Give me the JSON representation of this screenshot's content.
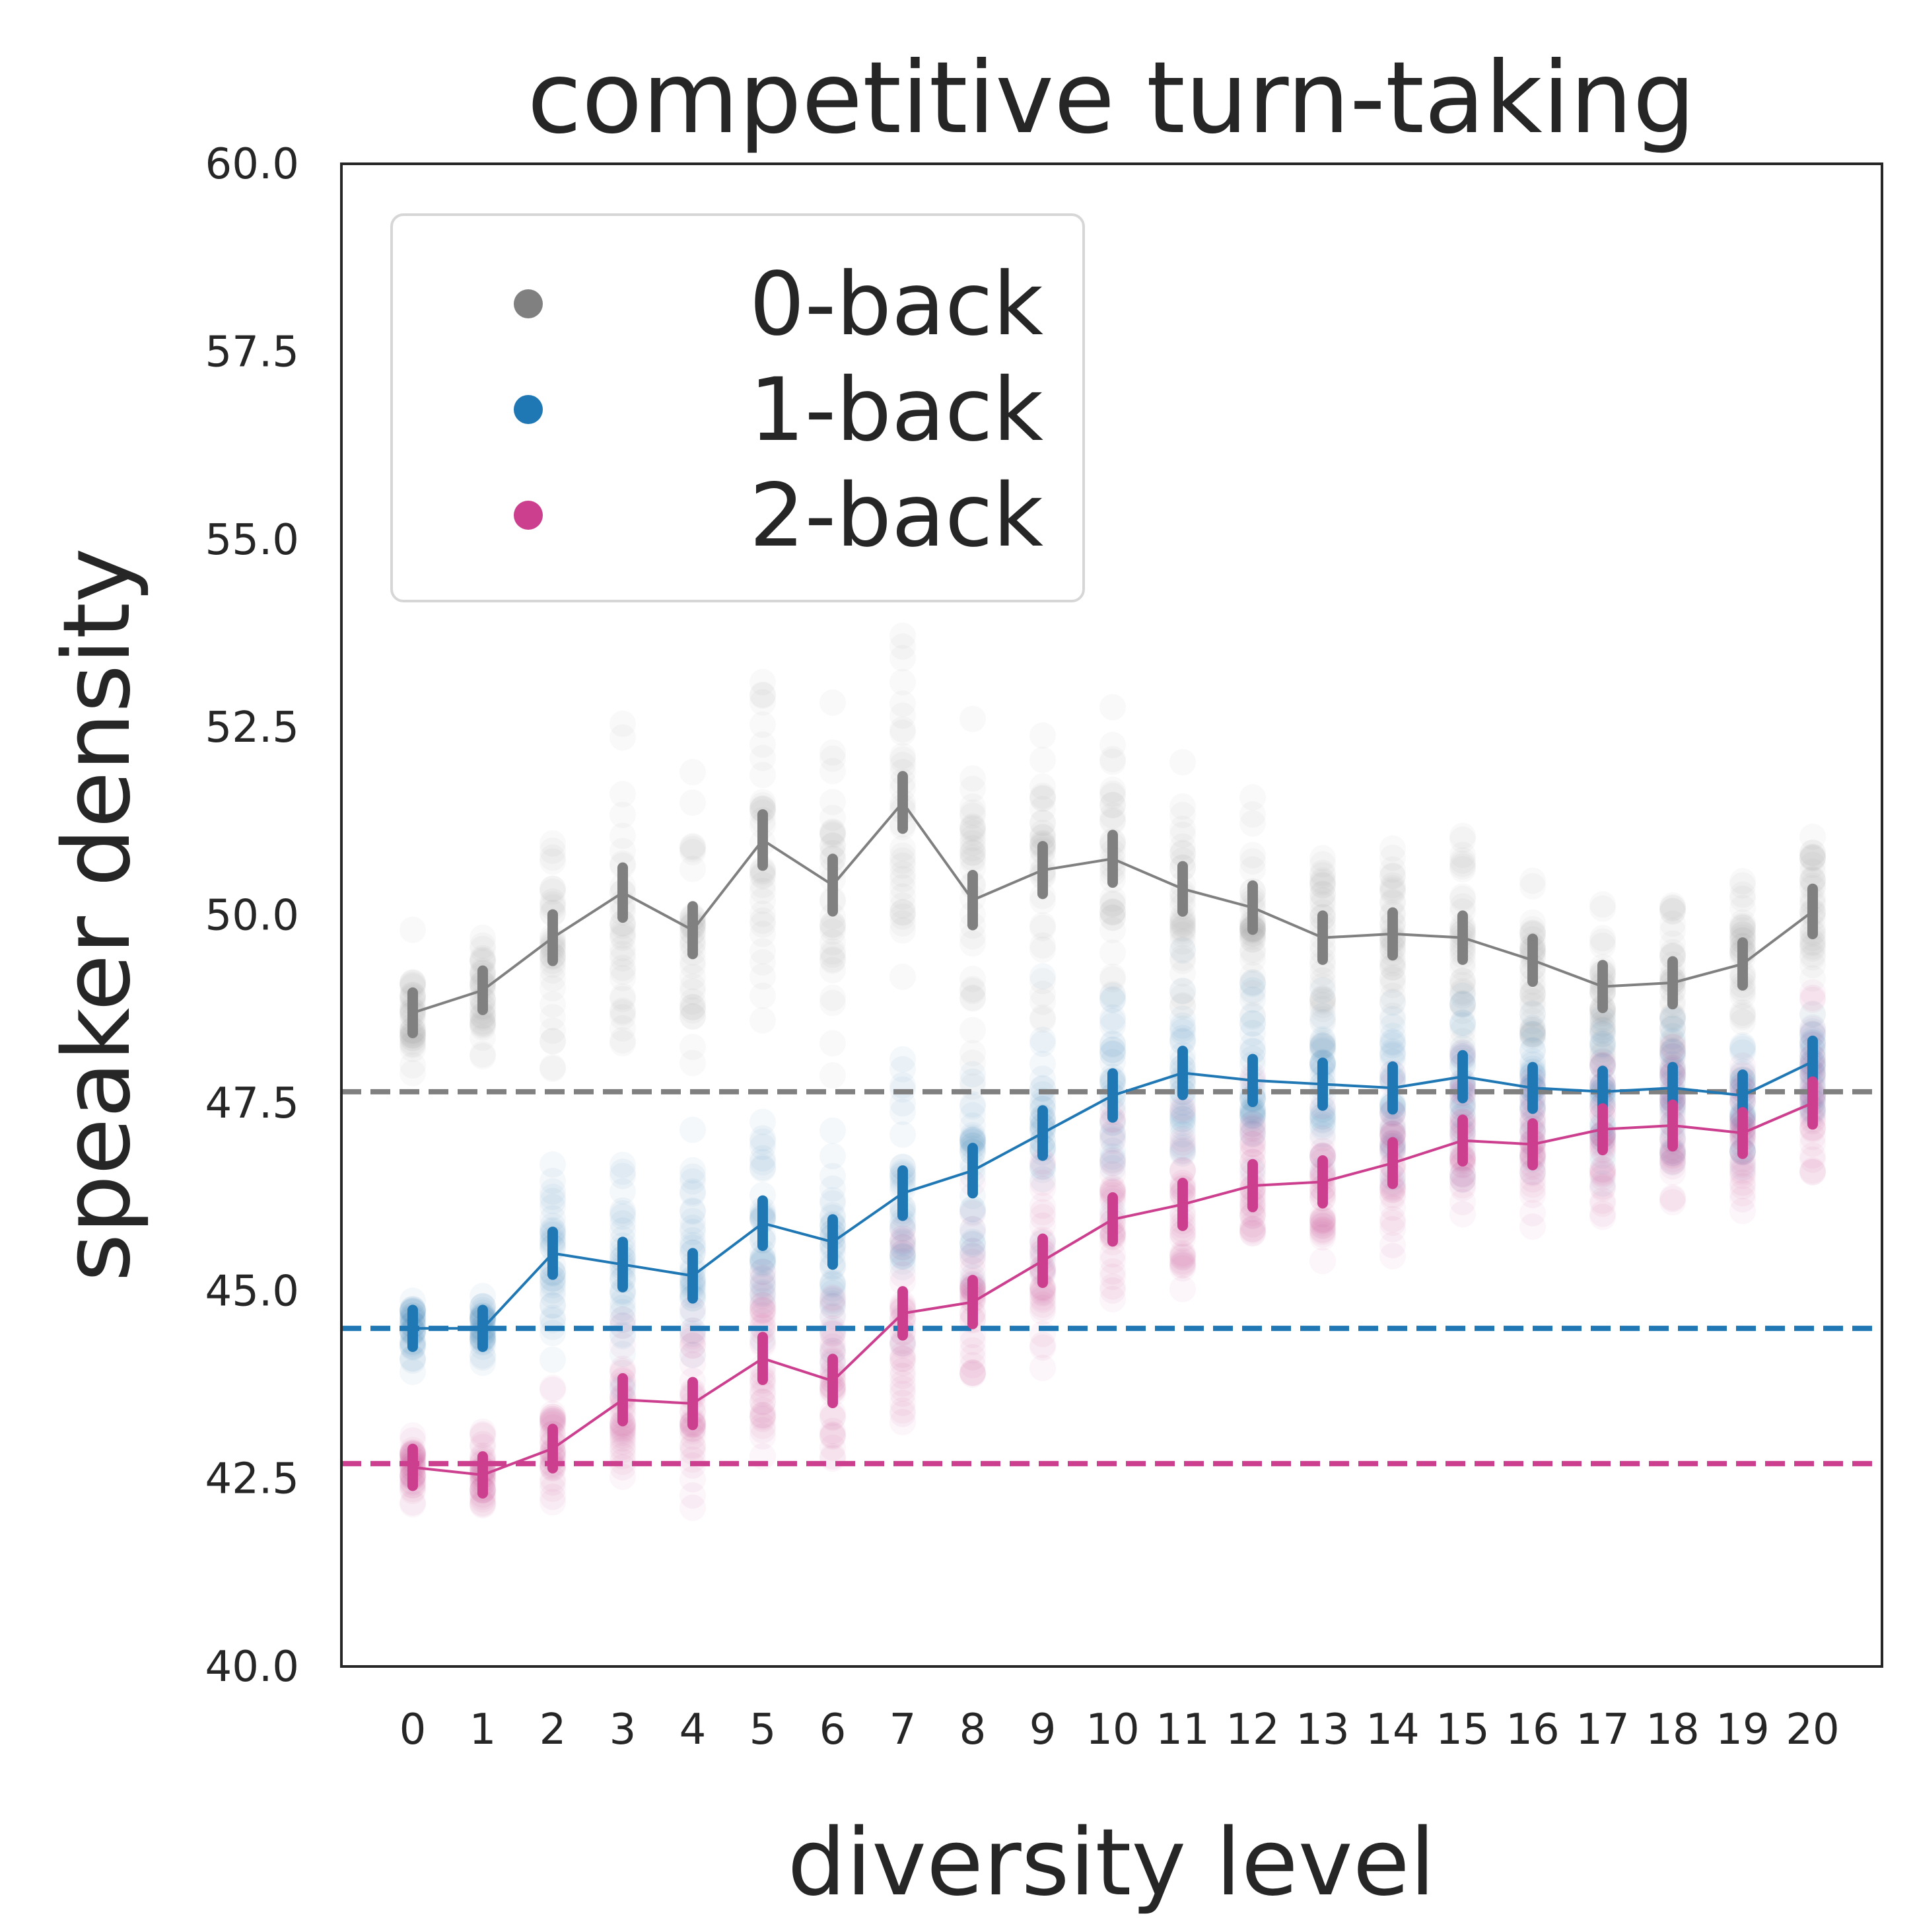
{
  "chart_data": {
    "type": "line",
    "title": "competitive turn-taking",
    "xlabel": "diversity level",
    "ylabel": "speaker density",
    "categories": [
      "0",
      "1",
      "2",
      "3",
      "4",
      "5",
      "6",
      "7",
      "8",
      "9",
      "10",
      "11",
      "12",
      "13",
      "14",
      "15",
      "16",
      "17",
      "18",
      "19",
      "20"
    ],
    "ylim": [
      40.0,
      60.0
    ],
    "yticks": [
      "40.0",
      "42.5",
      "45.0",
      "47.5",
      "50.0",
      "52.5",
      "55.0",
      "57.5",
      "60.0"
    ],
    "grid": false,
    "legend_position": "upper-left",
    "series": [
      {
        "name": "0-back",
        "color": "#808080",
        "baseline": 47.65,
        "values": [
          48.7,
          49.0,
          49.7,
          50.3,
          49.8,
          51.0,
          50.4,
          51.5,
          50.2,
          50.6,
          50.75,
          50.35,
          50.1,
          49.7,
          49.75,
          49.7,
          49.4,
          49.05,
          49.1,
          49.35,
          50.05
        ],
        "spread": [
          0.6,
          0.5,
          1.1,
          1.4,
          1.2,
          1.5,
          1.6,
          1.6,
          1.4,
          1.2,
          1.2,
          1.0,
          0.9,
          0.9,
          0.8,
          0.9,
          0.8,
          0.8,
          0.8,
          0.8,
          1.0
        ]
      },
      {
        "name": "1-back",
        "color": "#1f77b4",
        "baseline": 44.5,
        "values": [
          44.5,
          44.5,
          45.5,
          45.35,
          45.2,
          45.9,
          45.65,
          46.3,
          46.6,
          47.1,
          47.6,
          47.9,
          47.8,
          47.75,
          47.7,
          47.85,
          47.7,
          47.65,
          47.7,
          47.6,
          48.05
        ],
        "spread": [
          0.3,
          0.3,
          0.8,
          1.0,
          1.0,
          1.0,
          1.0,
          1.0,
          1.0,
          1.0,
          0.9,
          0.9,
          0.8,
          0.8,
          0.8,
          0.8,
          0.7,
          0.7,
          0.7,
          0.7,
          0.7
        ]
      },
      {
        "name": "2-back",
        "color": "#cc3f8e",
        "baseline": 42.7,
        "values": [
          42.65,
          42.55,
          42.9,
          43.55,
          43.5,
          44.1,
          43.8,
          44.7,
          44.85,
          45.4,
          45.95,
          46.15,
          46.4,
          46.45,
          46.7,
          47.0,
          46.95,
          47.15,
          47.2,
          47.1,
          47.5
        ],
        "spread": [
          0.3,
          0.3,
          0.5,
          0.8,
          0.8,
          0.8,
          0.9,
          0.9,
          0.9,
          0.9,
          0.9,
          0.8,
          0.8,
          0.8,
          0.7,
          0.7,
          0.7,
          0.7,
          0.7,
          0.7,
          0.8
        ]
      }
    ]
  }
}
